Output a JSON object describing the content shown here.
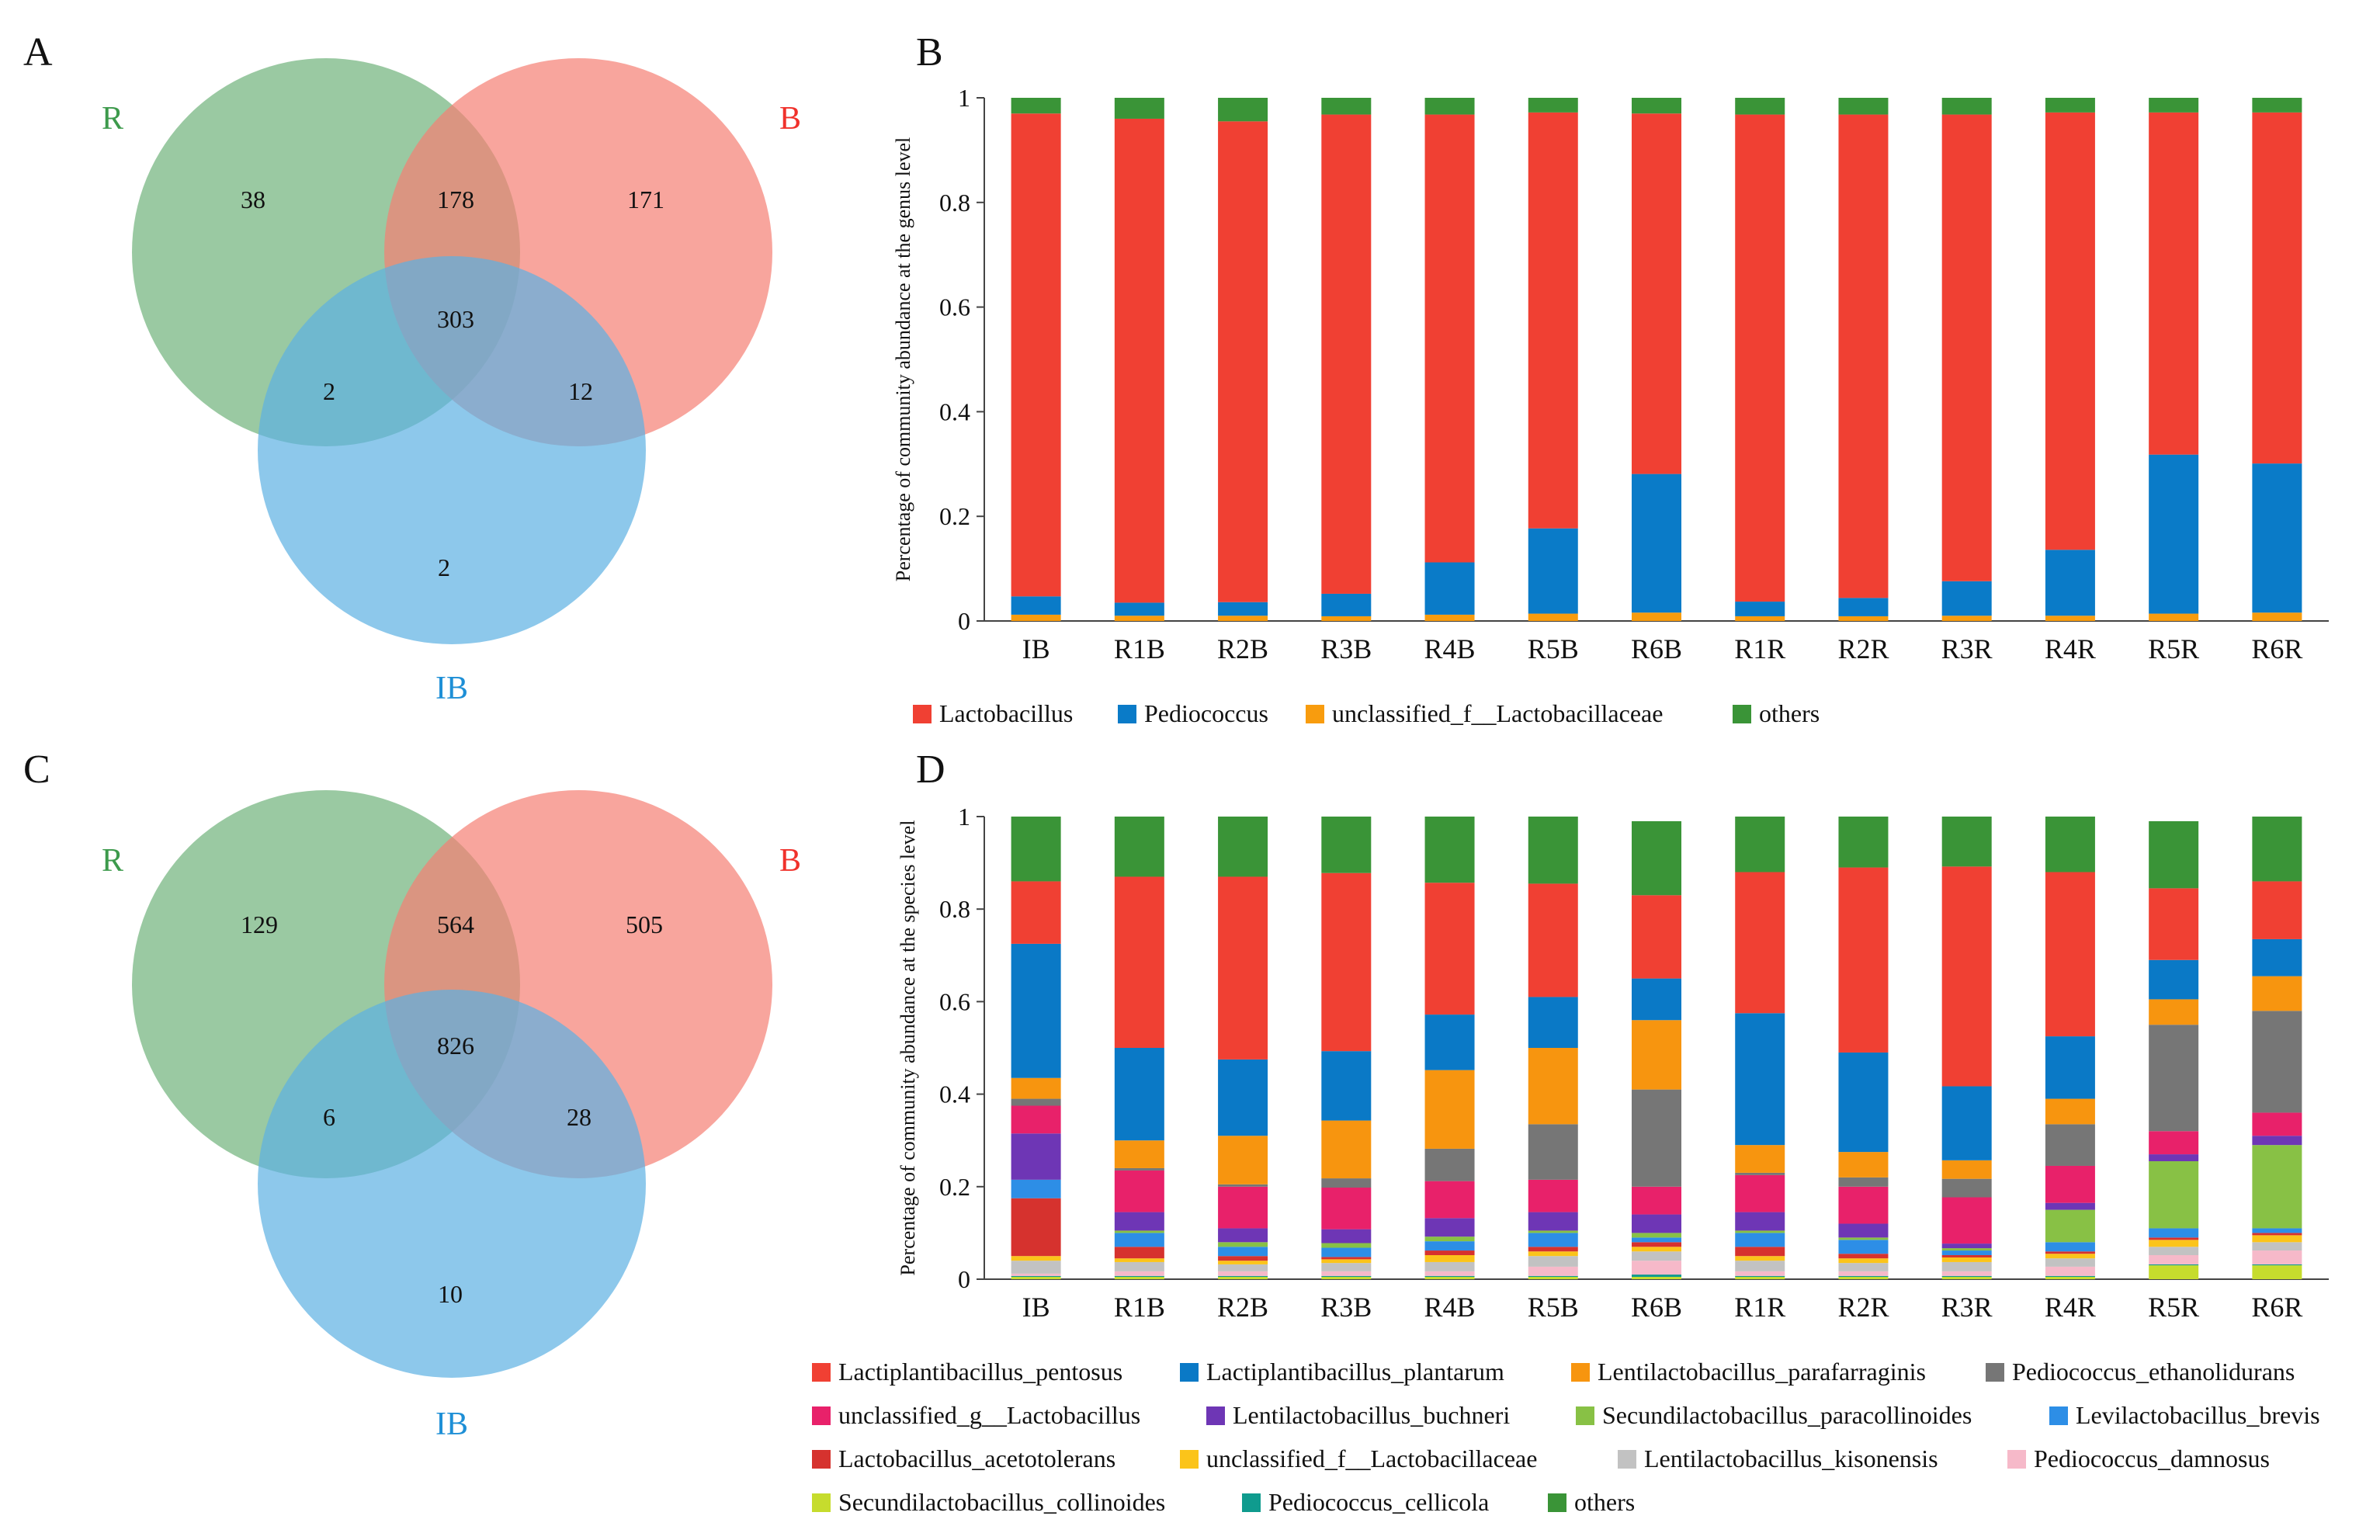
{
  "figure": {
    "panel_labels": [
      "A",
      "B",
      "C",
      "D"
    ]
  },
  "venn_genus": {
    "sets": [
      {
        "label": "R",
        "color": "#3d9a4c",
        "fill": "#6fb27a"
      },
      {
        "label": "B",
        "color": "#f0312b",
        "fill": "#f57f74"
      },
      {
        "label": "IB",
        "color": "#1e8fd6",
        "fill": "#5cb1e3"
      }
    ],
    "regions": {
      "R_only": "38",
      "R_B": "178",
      "B_only": "171",
      "all": "303",
      "R_IB": "2",
      "B_IB": "12",
      "IB_only": "2"
    }
  },
  "venn_species": {
    "sets": [
      {
        "label": "R",
        "color": "#3d9a4c",
        "fill": "#6fb27a"
      },
      {
        "label": "B",
        "color": "#f0312b",
        "fill": "#f57f74"
      },
      {
        "label": "IB",
        "color": "#1e8fd6",
        "fill": "#5cb1e3"
      }
    ],
    "regions": {
      "R_only": "129",
      "R_B": "564",
      "B_only": "505",
      "all": "826",
      "R_IB": "6",
      "B_IB": "28",
      "IB_only": "10"
    }
  },
  "chart_data": [
    {
      "type": "bar",
      "stacked": true,
      "panel": "B",
      "ylabel": "Percentage of community abundance at the genus level",
      "xlabel": "",
      "ylim": [
        0,
        1
      ],
      "yticks": [
        "0",
        "0.2",
        "0.4",
        "0.6",
        "0.8",
        "1"
      ],
      "categories": [
        "IB",
        "R1B",
        "R2B",
        "R3B",
        "R4B",
        "R5B",
        "R6B",
        "R1R",
        "R2R",
        "R3R",
        "R4R",
        "R5R",
        "R6R"
      ],
      "series": [
        {
          "name": "unclassified_f__Lactobacillaceae",
          "color": "#f89c0e",
          "values": [
            0.012,
            0.01,
            0.01,
            0.009,
            0.012,
            0.014,
            0.016,
            0.009,
            0.009,
            0.01,
            0.01,
            0.014,
            0.016
          ]
        },
        {
          "name": "Pediococcus",
          "color": "#0a7bc8",
          "values": [
            0.035,
            0.025,
            0.026,
            0.043,
            0.1,
            0.163,
            0.265,
            0.028,
            0.035,
            0.066,
            0.126,
            0.304,
            0.285
          ]
        },
        {
          "name": "Lactobacillus",
          "color": "#f04033",
          "values": [
            0.923,
            0.925,
            0.919,
            0.916,
            0.856,
            0.795,
            0.689,
            0.931,
            0.924,
            0.892,
            0.836,
            0.654,
            0.671
          ]
        },
        {
          "name": "others",
          "color": "#3a9437",
          "values": [
            0.03,
            0.04,
            0.045,
            0.032,
            0.032,
            0.028,
            0.03,
            0.032,
            0.032,
            0.032,
            0.028,
            0.028,
            0.028
          ]
        }
      ],
      "legend": [
        {
          "name": "Lactobacillus",
          "color": "#f04033"
        },
        {
          "name": "Pediococcus",
          "color": "#0a7bc8"
        },
        {
          "name": "unclassified_f__Lactobacillaceae",
          "color": "#f89c0e"
        },
        {
          "name": "others",
          "color": "#3a9437"
        }
      ]
    },
    {
      "type": "bar",
      "stacked": true,
      "panel": "D",
      "ylabel": "Percentage of community abundance at the species level",
      "xlabel": "",
      "ylim": [
        0,
        1
      ],
      "yticks": [
        "0",
        "0.2",
        "0.4",
        "0.6",
        "0.8",
        "1"
      ],
      "categories": [
        "IB",
        "R1B",
        "R2B",
        "R3B",
        "R4B",
        "R5B",
        "R6B",
        "R1R",
        "R2R",
        "R3R",
        "R4R",
        "R5R",
        "R6R"
      ],
      "series": [
        {
          "name": "Secundilactobacillus_collinoides",
          "color": "#c6dc2d",
          "values": [
            0.005,
            0.005,
            0.005,
            0.005,
            0.005,
            0.005,
            0.005,
            0.005,
            0.005,
            0.005,
            0.005,
            0.03,
            0.03
          ]
        },
        {
          "name": "Pediococcus_cellicola",
          "color": "#0f9b8e",
          "values": [
            0.002,
            0.002,
            0.002,
            0.002,
            0.002,
            0.002,
            0.005,
            0.002,
            0.002,
            0.002,
            0.002,
            0.002,
            0.002
          ]
        },
        {
          "name": "Pediococcus_damnosus",
          "color": "#f6b9c9",
          "values": [
            0.005,
            0.01,
            0.01,
            0.01,
            0.01,
            0.02,
            0.03,
            0.01,
            0.01,
            0.01,
            0.02,
            0.02,
            0.03
          ]
        },
        {
          "name": "Lentilactobacillus_kisonensis",
          "color": "#c2c2c2",
          "values": [
            0.028,
            0.02,
            0.015,
            0.018,
            0.02,
            0.023,
            0.02,
            0.023,
            0.018,
            0.02,
            0.018,
            0.018,
            0.018
          ]
        },
        {
          "name": "unclassified_f__Lactobacillaceae",
          "color": "#fbc41a",
          "values": [
            0.01,
            0.008,
            0.008,
            0.008,
            0.015,
            0.01,
            0.01,
            0.01,
            0.01,
            0.01,
            0.01,
            0.015,
            0.015
          ]
        },
        {
          "name": "Lactobacillus_acetotolerans",
          "color": "#d6322e",
          "values": [
            0.125,
            0.025,
            0.01,
            0.005,
            0.01,
            0.01,
            0.01,
            0.02,
            0.01,
            0.005,
            0.005,
            0.005,
            0.005
          ]
        },
        {
          "name": "Levilactobacillus_brevis",
          "color": "#2d8ee6",
          "values": [
            0.04,
            0.03,
            0.02,
            0.02,
            0.02,
            0.03,
            0.01,
            0.03,
            0.03,
            0.01,
            0.02,
            0.02,
            0.01
          ]
        },
        {
          "name": "Secundilactobacillus_paracollinoides",
          "color": "#88c145",
          "values": [
            0.0,
            0.005,
            0.01,
            0.01,
            0.01,
            0.005,
            0.01,
            0.005,
            0.005,
            0.005,
            0.07,
            0.145,
            0.18
          ]
        },
        {
          "name": "Lentilactobacillus_buchneri",
          "color": "#6e36b5",
          "values": [
            0.1,
            0.04,
            0.03,
            0.03,
            0.04,
            0.04,
            0.04,
            0.04,
            0.03,
            0.01,
            0.015,
            0.015,
            0.02
          ]
        },
        {
          "name": "unclassified_g__Lactobacillus",
          "color": "#e8216a",
          "values": [
            0.06,
            0.09,
            0.09,
            0.09,
            0.08,
            0.07,
            0.06,
            0.08,
            0.08,
            0.1,
            0.08,
            0.05,
            0.05
          ]
        },
        {
          "name": "Pediococcus_ethanolidurans",
          "color": "#767676",
          "values": [
            0.015,
            0.005,
            0.005,
            0.02,
            0.07,
            0.12,
            0.21,
            0.005,
            0.02,
            0.04,
            0.09,
            0.23,
            0.22
          ]
        },
        {
          "name": "Lentilactobacillus_parafarraginis",
          "color": "#f7950f",
          "values": [
            0.045,
            0.06,
            0.105,
            0.125,
            0.17,
            0.165,
            0.15,
            0.06,
            0.055,
            0.04,
            0.055,
            0.055,
            0.075
          ]
        },
        {
          "name": "Lactiplantibacillus_plantarum",
          "color": "#0a79c6",
          "values": [
            0.29,
            0.2,
            0.165,
            0.15,
            0.12,
            0.11,
            0.09,
            0.285,
            0.215,
            0.16,
            0.135,
            0.085,
            0.08
          ]
        },
        {
          "name": "Lactiplantibacillus_pentosus",
          "color": "#f04033",
          "values": [
            0.135,
            0.37,
            0.395,
            0.385,
            0.285,
            0.245,
            0.18,
            0.305,
            0.4,
            0.475,
            0.355,
            0.155,
            0.125
          ]
        },
        {
          "name": "others",
          "color": "#3a9437",
          "values": [
            0.14,
            0.13,
            0.13,
            0.122,
            0.143,
            0.145,
            0.16,
            0.12,
            0.11,
            0.108,
            0.12,
            0.145,
            0.14
          ]
        }
      ],
      "legend": [
        {
          "name": "Lactiplantibacillus_pentosus",
          "color": "#f04033"
        },
        {
          "name": "Lactiplantibacillus_plantarum",
          "color": "#0a79c6"
        },
        {
          "name": "Lentilactobacillus_parafarraginis",
          "color": "#f7950f"
        },
        {
          "name": "Pediococcus_ethanolidurans",
          "color": "#767676"
        },
        {
          "name": "unclassified_g__Lactobacillus",
          "color": "#e8216a"
        },
        {
          "name": "Lentilactobacillus_buchneri",
          "color": "#6e36b5"
        },
        {
          "name": "Secundilactobacillus_paracollinoides",
          "color": "#88c145"
        },
        {
          "name": "Levilactobacillus_brevis",
          "color": "#2d8ee6"
        },
        {
          "name": "Lactobacillus_acetotolerans",
          "color": "#d6322e"
        },
        {
          "name": "unclassified_f__Lactobacillaceae",
          "color": "#fbc41a"
        },
        {
          "name": "Lentilactobacillus_kisonensis",
          "color": "#c2c2c2"
        },
        {
          "name": "Pediococcus_damnosus",
          "color": "#f6b9c9"
        },
        {
          "name": "Secundilactobacillus_collinoides",
          "color": "#c6dc2d"
        },
        {
          "name": "Pediococcus_cellicola",
          "color": "#0f9b8e"
        },
        {
          "name": "others",
          "color": "#3a9437"
        }
      ]
    }
  ]
}
